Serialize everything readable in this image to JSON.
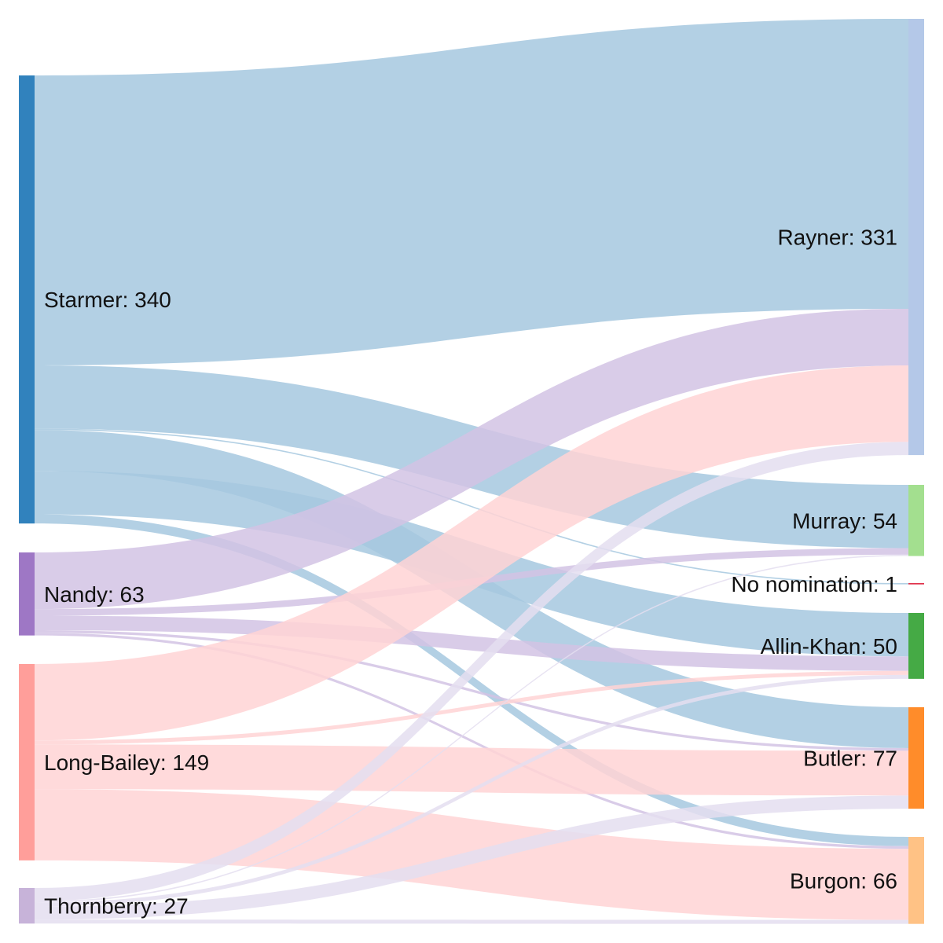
{
  "sankey": {
    "left_nodes": [
      {
        "id": "starmer",
        "name": "Starmer",
        "value": 340,
        "color": "#3182bd"
      },
      {
        "id": "nandy",
        "name": "Nandy",
        "value": 63,
        "color": "#9e77c5"
      },
      {
        "id": "long_bailey",
        "name": "Long-Bailey",
        "value": 149,
        "color": "#ff9e9a"
      },
      {
        "id": "thornberry",
        "name": "Thornberry",
        "value": 27,
        "color": "#c7b3d9"
      }
    ],
    "right_nodes": [
      {
        "id": "rayner",
        "name": "Rayner",
        "value": 331,
        "color": "#b4c8e8"
      },
      {
        "id": "murray",
        "name": "Murray",
        "value": 54,
        "color": "#a3df8f"
      },
      {
        "id": "no_nomination",
        "name": "No nomination",
        "value": 1,
        "color": "#e0324a"
      },
      {
        "id": "allin_khan",
        "name": "Allin-Khan",
        "value": 50,
        "color": "#45aa45"
      },
      {
        "id": "butler",
        "name": "Butler",
        "value": 77,
        "color": "#ff8c2a"
      },
      {
        "id": "burgon",
        "name": "Burgon",
        "value": 66,
        "color": "#ffc285"
      }
    ],
    "link_colors": {
      "starmer": "#a6c8df",
      "nandy": "#d2c3e4",
      "long_bailey": "#ffd4d5",
      "thornberry": "#e4def0"
    },
    "links": [
      {
        "source": "starmer",
        "target": "rayner",
        "value": 220
      },
      {
        "source": "starmer",
        "target": "murray",
        "value": 48
      },
      {
        "source": "starmer",
        "target": "no_nomination",
        "value": 1
      },
      {
        "source": "starmer",
        "target": "butler",
        "value": 31
      },
      {
        "source": "starmer",
        "target": "allin_khan",
        "value": 33
      },
      {
        "source": "starmer",
        "target": "burgon",
        "value": 7
      },
      {
        "source": "nandy",
        "target": "rayner",
        "value": 43
      },
      {
        "source": "nandy",
        "target": "murray",
        "value": 5
      },
      {
        "source": "nandy",
        "target": "allin_khan",
        "value": 11
      },
      {
        "source": "nandy",
        "target": "butler",
        "value": 2
      },
      {
        "source": "nandy",
        "target": "burgon",
        "value": 2
      },
      {
        "source": "long_bailey",
        "target": "rayner",
        "value": 58
      },
      {
        "source": "long_bailey",
        "target": "allin_khan",
        "value": 3
      },
      {
        "source": "long_bailey",
        "target": "butler",
        "value": 34
      },
      {
        "source": "long_bailey",
        "target": "burgon",
        "value": 54
      },
      {
        "source": "thornberry",
        "target": "rayner",
        "value": 10
      },
      {
        "source": "thornberry",
        "target": "murray",
        "value": 1
      },
      {
        "source": "thornberry",
        "target": "allin_khan",
        "value": 3
      },
      {
        "source": "thornberry",
        "target": "butler",
        "value": 10
      },
      {
        "source": "thornberry",
        "target": "burgon",
        "value": 3
      }
    ]
  }
}
